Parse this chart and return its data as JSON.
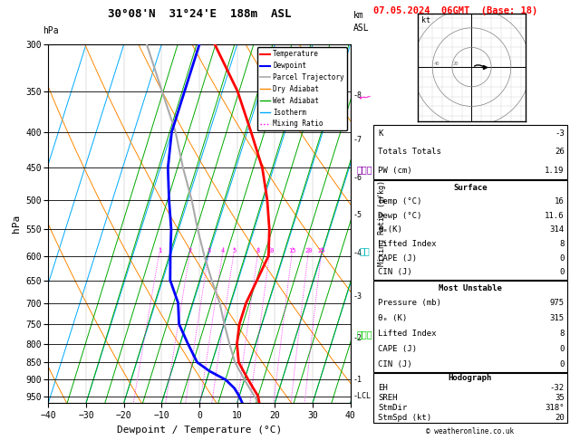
{
  "title_left": "30°08'N  31°24'E  188m  ASL",
  "title_right": "07.05.2024  06GMT  (Base: 18)",
  "xlabel": "Dewpoint / Temperature (°C)",
  "ylabel_left": "hPa",
  "pressure_levels": [
    300,
    350,
    400,
    450,
    500,
    550,
    600,
    650,
    700,
    750,
    800,
    850,
    900,
    950
  ],
  "xlim": [
    -40,
    40
  ],
  "pmin": 300,
  "pmax": 970,
  "skew_factor": 30,
  "bg_color": "#ffffff",
  "temp_color": "#ff0000",
  "dewp_color": "#0000ff",
  "parcel_color": "#aaaaaa",
  "dry_adiabat_color": "#ff8800",
  "wet_adiabat_color": "#00aa00",
  "isotherm_color": "#00aaff",
  "mixing_ratio_color": "#ff00ff",
  "mixing_ratio_values": [
    1,
    2,
    3,
    4,
    5,
    8,
    10,
    15,
    20,
    25
  ],
  "temp_profile_p": [
    975,
    950,
    925,
    900,
    875,
    850,
    800,
    750,
    700,
    650,
    600,
    550,
    500,
    450,
    400,
    350,
    300
  ],
  "temp_profile_t": [
    16,
    15,
    13,
    11,
    9,
    7,
    5,
    4,
    4,
    5,
    6,
    4,
    1,
    -3,
    -9,
    -16,
    -26
  ],
  "dewp_profile_p": [
    975,
    950,
    925,
    900,
    875,
    850,
    800,
    750,
    700,
    650,
    600,
    550,
    500,
    450,
    400,
    350,
    300
  ],
  "dewp_profile_t": [
    11.6,
    10,
    8,
    5,
    0,
    -4,
    -8,
    -12,
    -14,
    -18,
    -20,
    -22,
    -25,
    -28,
    -30,
    -30,
    -30
  ],
  "parcel_profile_p": [
    975,
    950,
    900,
    850,
    800,
    750,
    700,
    650,
    600,
    550,
    500,
    450,
    400,
    350,
    300
  ],
  "parcel_profile_t": [
    16,
    14,
    10,
    6,
    3,
    0,
    -3,
    -7,
    -11,
    -15,
    -19,
    -24,
    -29,
    -36,
    -44
  ],
  "legend_labels": [
    "Temperature",
    "Dewpoint",
    "Parcel Trajectory",
    "Dry Adiabat",
    "Wet Adiabat",
    "Isotherm",
    "Mixing Ratio"
  ],
  "km_vals": [
    8,
    7,
    6,
    5,
    4,
    3,
    2,
    1
  ],
  "km_press": [
    355,
    410,
    465,
    525,
    595,
    685,
    785,
    900
  ],
  "lcl_press": 950,
  "copyright": "© weatheronline.co.uk",
  "info_k": "-3",
  "info_tt": "26",
  "info_pw": "1.19",
  "info_temp": "16",
  "info_dewp": "11.6",
  "info_thetae": "314",
  "info_li": "8",
  "info_cape": "0",
  "info_cin": "0",
  "info_mu_press": "975",
  "info_mu_thetae": "315",
  "info_mu_li": "8",
  "info_mu_cape": "0",
  "info_mu_cin": "0",
  "info_eh": "-32",
  "info_sreh": "35",
  "info_stmdir": "318°",
  "info_stmspd": "20"
}
